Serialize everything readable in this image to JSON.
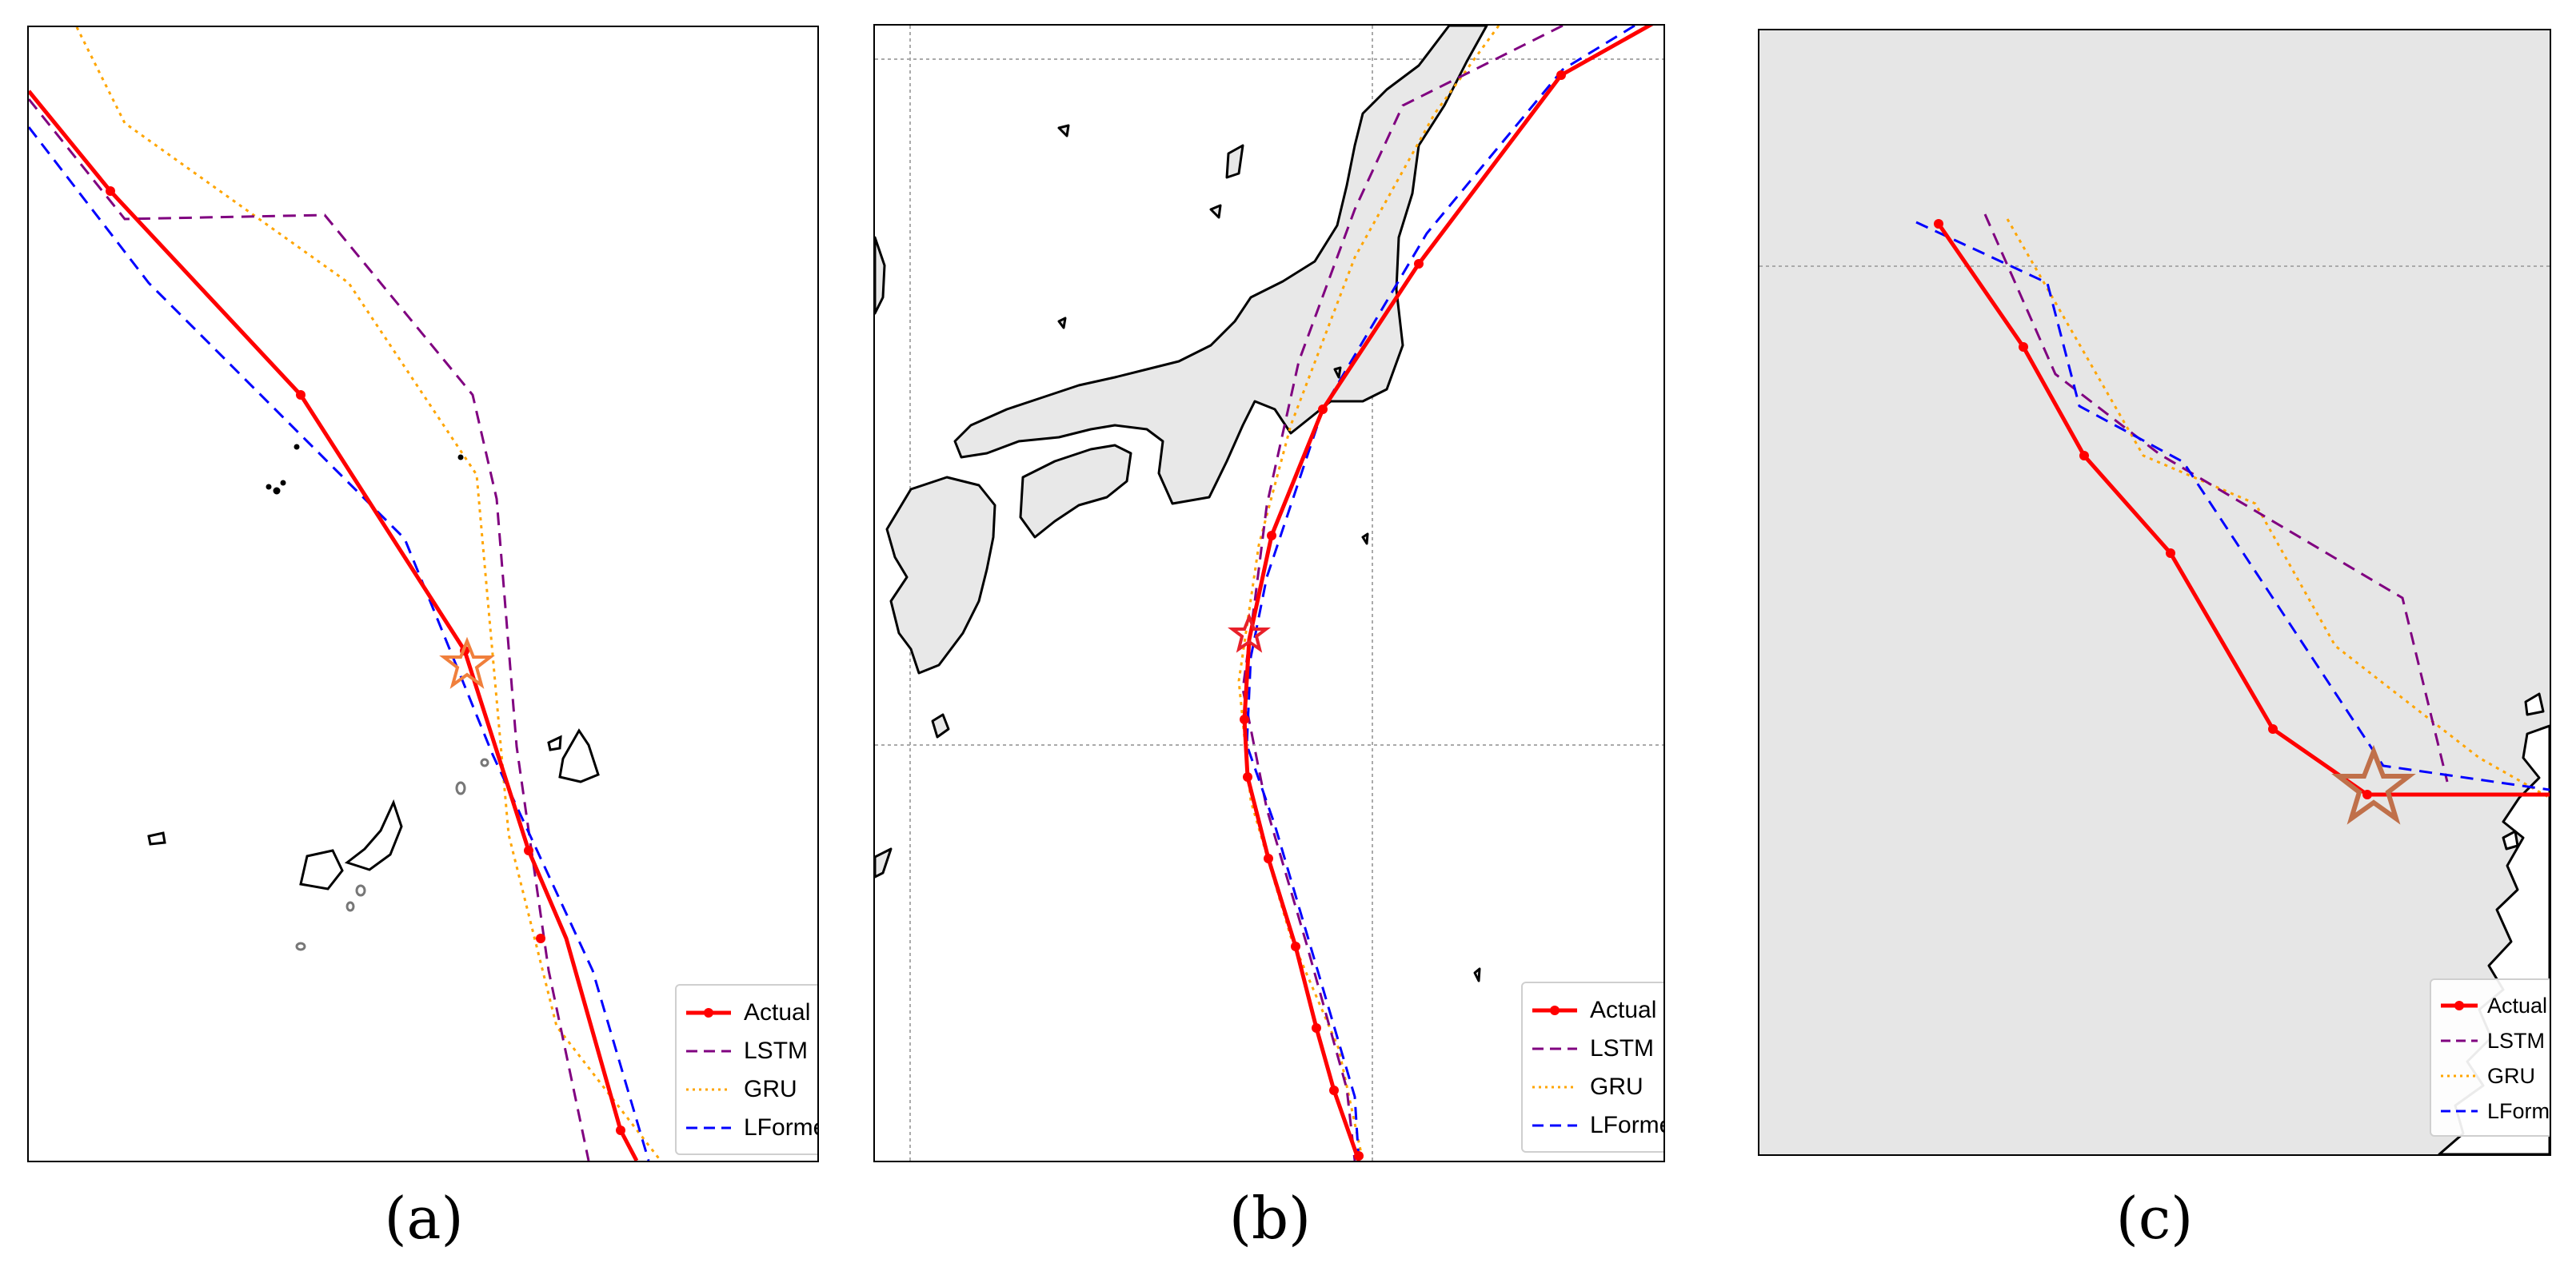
{
  "panels": [
    {
      "id": "a",
      "caption": "(a)",
      "legend": [
        {
          "label": "Actual",
          "color": "#ff0000",
          "style": "solid-marker"
        },
        {
          "label": "LSTM",
          "color": "#800080",
          "style": "dashed"
        },
        {
          "label": "GRU",
          "color": "#ffa500",
          "style": "dotted"
        },
        {
          "label": "LFormer",
          "color": "#0000ff",
          "style": "dashed"
        }
      ]
    },
    {
      "id": "b",
      "caption": "(b)",
      "legend": [
        {
          "label": "Actual",
          "color": "#ff0000",
          "style": "solid-marker"
        },
        {
          "label": "LSTM",
          "color": "#800080",
          "style": "dashed"
        },
        {
          "label": "GRU",
          "color": "#ffa500",
          "style": "dotted"
        },
        {
          "label": "LFormer",
          "color": "#0000ff",
          "style": "dashed"
        }
      ]
    },
    {
      "id": "c",
      "caption": "(c)",
      "legend": [
        {
          "label": "Actual",
          "color": "#ff0000",
          "style": "solid-marker"
        },
        {
          "label": "LSTM",
          "color": "#800080",
          "style": "dashed"
        },
        {
          "label": "GRU",
          "color": "#ffa500",
          "style": "dotted"
        },
        {
          "label": "LFormer",
          "color": "#0000ff",
          "style": "dashed"
        }
      ]
    }
  ],
  "colors": {
    "actual": "#ff0000",
    "lstm": "#800080",
    "gru": "#ffa500",
    "lformer": "#0000ff",
    "land": "#e8e8e8",
    "ocean_c": "#e6e6e6",
    "star_a": "#f07f3c",
    "star_b": "#e8202a",
    "star_c": "#c0704a"
  },
  "icons": {
    "start_marker": "star-icon"
  }
}
